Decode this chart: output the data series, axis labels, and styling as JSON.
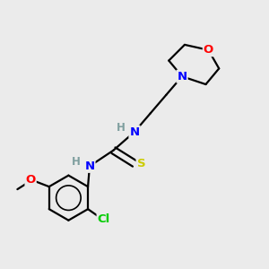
{
  "background_color": "#ebebeb",
  "bond_color": "#000000",
  "atom_colors": {
    "N": "#0000ff",
    "O": "#ff0000",
    "S": "#cccc00",
    "Cl": "#00cc00",
    "H": "#7f9f9f",
    "C": "#000000"
  },
  "figsize": [
    3.0,
    3.0
  ],
  "dpi": 100,
  "lw": 1.6,
  "fontsize": 9.5
}
